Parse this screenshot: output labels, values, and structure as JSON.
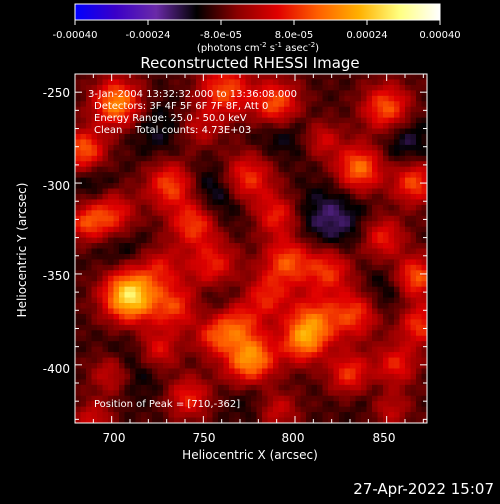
{
  "colorbar": {
    "tick_labels": [
      "-0.00040",
      "-0.00024",
      "-8.0e-05",
      "8.0e-05",
      "0.00024",
      "0.00040"
    ],
    "range": [
      -0.0004,
      0.0004
    ],
    "unit_label": "(photons cm-2 s-1 asec-2)",
    "colormap": [
      "#0000ff",
      "#3a00c8",
      "#6a2aa8",
      "#000000",
      "#8a0000",
      "#e00000",
      "#ff6000",
      "#ffb000",
      "#ffff80",
      "#ffffff"
    ]
  },
  "chart_data": {
    "type": "heatmap",
    "title": "Reconstructed RHESSI Image",
    "xlabel": "Heliocentric X (arcsec)",
    "ylabel": "Heliocentric Y (arcsec)",
    "xlim": [
      680,
      872
    ],
    "ylim": [
      -432,
      -240
    ],
    "x_ticks": [
      700,
      750,
      800,
      850
    ],
    "y_ticks": [
      -250,
      -300,
      -350,
      -400
    ],
    "annotations": [
      "3-Jan-2004 13:32:32.000 to 13:36:08.000",
      "Detectors: 3F 4F 5F 6F 7F 8F, Att 0",
      "Energy Range: 25.0 - 50.0 keV",
      "Clean    Total counts: 4.73E+03"
    ],
    "peak_label": "Position of Peak = [710,-362]",
    "peak": [
      710,
      -362
    ],
    "grid": "off",
    "blobs": [
      [
        710,
        -362,
        0.00038,
        10
      ],
      [
        703,
        -256,
        0.00027,
        9
      ],
      [
        685,
        -282,
        0.00022,
        8
      ],
      [
        732,
        -301,
        0.0002,
        9
      ],
      [
        762,
        -249,
        0.0002,
        10
      ],
      [
        790,
        -257,
        0.00024,
        9
      ],
      [
        850,
        -259,
        0.00022,
        9
      ],
      [
        835,
        -292,
        0.00024,
        9
      ],
      [
        865,
        -300,
        0.0002,
        8
      ],
      [
        773,
        -298,
        0.00022,
        10
      ],
      [
        790,
        -318,
        0.00016,
        8
      ],
      [
        745,
        -322,
        0.0002,
        9
      ],
      [
        700,
        -318,
        0.00018,
        9
      ],
      [
        686,
        -322,
        0.00016,
        7
      ],
      [
        756,
        -347,
        0.0002,
        10
      ],
      [
        796,
        -343,
        0.0002,
        9
      ],
      [
        818,
        -348,
        0.00018,
        9
      ],
      [
        848,
        -330,
        0.00016,
        8
      ],
      [
        866,
        -352,
        0.00022,
        8
      ],
      [
        735,
        -368,
        0.00018,
        9
      ],
      [
        767,
        -377,
        0.0002,
        9
      ],
      [
        784,
        -362,
        0.00016,
        9
      ],
      [
        810,
        -377,
        0.00022,
        10
      ],
      [
        833,
        -372,
        0.00018,
        9
      ],
      [
        868,
        -378,
        0.00018,
        8
      ],
      [
        725,
        -392,
        0.00016,
        8
      ],
      [
        755,
        -385,
        0.00014,
        7
      ],
      [
        776,
        -398,
        0.0003,
        10
      ],
      [
        804,
        -388,
        0.00018,
        8
      ],
      [
        830,
        -405,
        0.00018,
        8
      ],
      [
        855,
        -400,
        0.00016,
        8
      ],
      [
        700,
        -405,
        0.00014,
        8
      ],
      [
        742,
        -418,
        0.00016,
        8
      ],
      [
        790,
        -424,
        0.00014,
        8
      ],
      [
        851,
        -424,
        0.00014,
        8
      ],
      [
        690,
        -430,
        0.00012,
        7
      ],
      [
        727,
        -346,
        0.00012,
        8
      ],
      [
        748,
        -270,
        0.0001,
        8
      ],
      [
        815,
        -276,
        0.00012,
        7
      ],
      [
        725,
        -270,
        -6e-05,
        11
      ],
      [
        792,
        -270,
        -8e-05,
        11
      ],
      [
        760,
        -305,
        -0.00012,
        12
      ],
      [
        820,
        -320,
        -0.0001,
        13
      ],
      [
        705,
        -335,
        -6e-05,
        10
      ],
      [
        760,
        -360,
        -0.0001,
        12
      ],
      [
        850,
        -360,
        -6e-05,
        10
      ],
      [
        712,
        -400,
        -8e-05,
        12
      ],
      [
        780,
        -415,
        -8e-05,
        11
      ],
      [
        845,
        -420,
        -6e-05,
        10
      ],
      [
        860,
        -276,
        -8e-05,
        10
      ],
      [
        690,
        -300,
        -6e-05,
        8
      ]
    ]
  },
  "footer": {
    "timestamp": "27-Apr-2022 15:07"
  }
}
